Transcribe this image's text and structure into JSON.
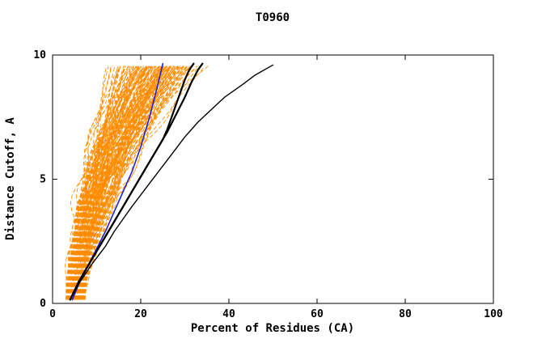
{
  "chart_data": {
    "type": "line",
    "title": "T0960",
    "xlabel": "Percent of Residues (CA)",
    "ylabel": "Distance Cutoff, A",
    "xlim": [
      0,
      100
    ],
    "ylim": [
      0,
      10
    ],
    "xticks": [
      0,
      20,
      40,
      60,
      80,
      100
    ],
    "yticks": [
      0,
      5,
      10
    ],
    "grid": false,
    "legend": "none",
    "colors": {
      "background": "#FFFFFF",
      "axis": "#000000",
      "bundle": "#FF8C00",
      "highlight_black": "#000000",
      "highlight_blue": "#2222CC"
    },
    "bundle": {
      "name": "predicted-model-curves",
      "color": "#FF8C00",
      "count": 150,
      "seed": 1337,
      "start_x_range": [
        3,
        7.5
      ],
      "end_x_range": [
        11,
        37
      ],
      "exponent_range": [
        1.15,
        2.3
      ],
      "y_start": 0.15,
      "y_end": 9.7,
      "wiggle_amp_range": [
        0.4,
        1.3
      ],
      "dash": "5 3",
      "width": 0.9
    },
    "series": [
      {
        "name": "black-curve-far-right",
        "color": "#000000",
        "width": 1.4,
        "points": [
          [
            4,
            0.15
          ],
          [
            6,
            0.8
          ],
          [
            9,
            1.6
          ],
          [
            12,
            2.3
          ],
          [
            14,
            2.9
          ],
          [
            16,
            3.4
          ],
          [
            18,
            3.9
          ],
          [
            21,
            4.6
          ],
          [
            24,
            5.3
          ],
          [
            27,
            6.0
          ],
          [
            30,
            6.7
          ],
          [
            33,
            7.3
          ],
          [
            36,
            7.8
          ],
          [
            39,
            8.3
          ],
          [
            43,
            8.8
          ],
          [
            46,
            9.2
          ],
          [
            50,
            9.6
          ]
        ]
      },
      {
        "name": "black-curve-thick-a",
        "color": "#000000",
        "width": 2.2,
        "points": [
          [
            4,
            0.15
          ],
          [
            5.5,
            0.7
          ],
          [
            7,
            1.2
          ],
          [
            9,
            1.8
          ],
          [
            11,
            2.4
          ],
          [
            13,
            3.0
          ],
          [
            15,
            3.6
          ],
          [
            17,
            4.2
          ],
          [
            19,
            4.8
          ],
          [
            21,
            5.4
          ],
          [
            23,
            6.0
          ],
          [
            25,
            6.6
          ],
          [
            26,
            7.0
          ],
          [
            27,
            7.5
          ],
          [
            28,
            8.0
          ],
          [
            29,
            8.5
          ],
          [
            30,
            9.0
          ],
          [
            31,
            9.4
          ],
          [
            32,
            9.65
          ]
        ]
      },
      {
        "name": "black-curve-thick-b",
        "color": "#000000",
        "width": 2.2,
        "points": [
          [
            4,
            0.15
          ],
          [
            6,
            0.9
          ],
          [
            8,
            1.5
          ],
          [
            10,
            2.1
          ],
          [
            12,
            2.7
          ],
          [
            14,
            3.3
          ],
          [
            16,
            3.9
          ],
          [
            18,
            4.5
          ],
          [
            20,
            5.1
          ],
          [
            22,
            5.7
          ],
          [
            24,
            6.3
          ],
          [
            26,
            6.9
          ],
          [
            28,
            7.6
          ],
          [
            30,
            8.3
          ],
          [
            31.5,
            8.9
          ],
          [
            33,
            9.4
          ],
          [
            34,
            9.65
          ]
        ]
      },
      {
        "name": "blue-curve",
        "color": "#2222CC",
        "width": 1.6,
        "points": [
          [
            4.5,
            0.15
          ],
          [
            6,
            0.8
          ],
          [
            8,
            1.5
          ],
          [
            10,
            2.2
          ],
          [
            12,
            2.9
          ],
          [
            13.5,
            3.5
          ],
          [
            15,
            4.1
          ],
          [
            16.5,
            4.7
          ],
          [
            18,
            5.3
          ],
          [
            19,
            5.8
          ],
          [
            20,
            6.3
          ],
          [
            21,
            6.9
          ],
          [
            22,
            7.5
          ],
          [
            23,
            8.2
          ],
          [
            24,
            8.9
          ],
          [
            25,
            9.65
          ]
        ]
      }
    ]
  }
}
